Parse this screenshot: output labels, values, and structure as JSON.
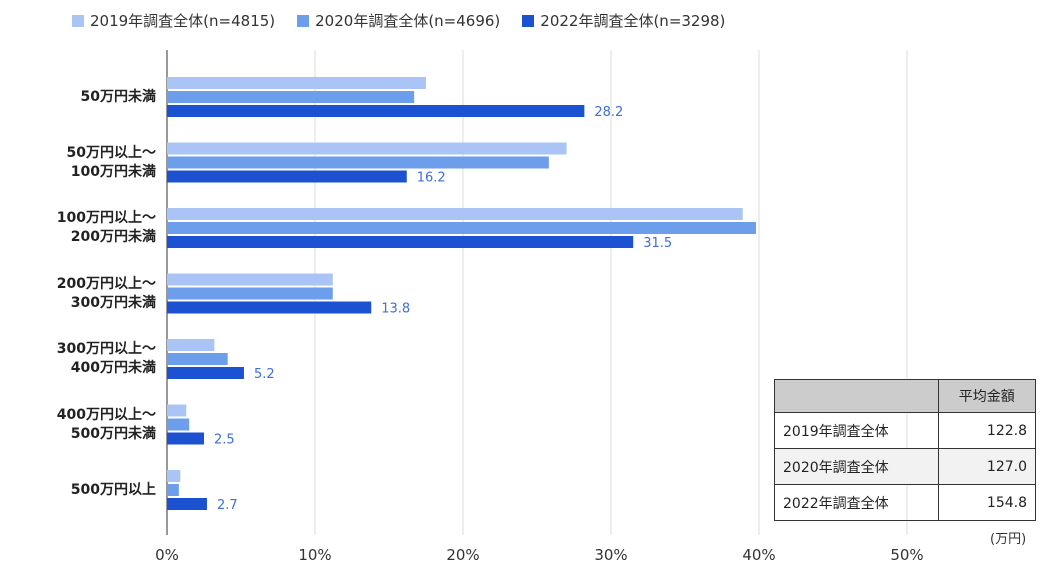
{
  "legend": [
    {
      "name": "2019年調査全体(n=4815)",
      "color": "#a9c4f5"
    },
    {
      "name": "2020年調査全体(n=4696)",
      "color": "#6d9eeb"
    },
    {
      "name": "2022年調査全体(n=3298)",
      "color": "#1c52d1"
    }
  ],
  "chart_data": {
    "type": "bar",
    "orientation": "horizontal",
    "categories": [
      [
        "50万円未満"
      ],
      [
        "50万円以上～",
        "100万円未満"
      ],
      [
        "100万円以上～",
        "200万円未満"
      ],
      [
        "200万円以上～",
        "300万円未満"
      ],
      [
        "300万円以上～",
        "400万円未満"
      ],
      [
        "400万円以上～",
        "500万円未満"
      ],
      [
        "500万円以上"
      ]
    ],
    "series": [
      {
        "name": "2019年調査全体(n=4815)",
        "color": "#a9c4f5",
        "values": [
          17.5,
          27.0,
          38.9,
          11.2,
          3.2,
          1.3,
          0.9
        ]
      },
      {
        "name": "2020年調査全体(n=4696)",
        "color": "#6d9eeb",
        "values": [
          16.7,
          25.8,
          39.8,
          11.2,
          4.1,
          1.5,
          0.8
        ]
      },
      {
        "name": "2022年調査全体(n=3298)",
        "color": "#1c52d1",
        "values": [
          28.2,
          16.2,
          31.5,
          13.8,
          5.2,
          2.5,
          2.7
        ],
        "labels": [
          "28.2",
          "16.2",
          "31.5",
          "13.8",
          "5.2",
          "2.5",
          "2.7"
        ]
      }
    ],
    "xlim": [
      0,
      50
    ],
    "xticks": [
      "0%",
      "10%",
      "20%",
      "30%",
      "40%",
      "50%"
    ],
    "xtick_values": [
      0,
      10,
      20,
      30,
      40,
      50
    ],
    "grid": true
  },
  "avg_table": {
    "header": "平均金額",
    "rows": [
      {
        "label": "2019年調査全体",
        "value": "122.8"
      },
      {
        "label": "2020年調査全体",
        "value": "127.0"
      },
      {
        "label": "2022年調査全体",
        "value": "154.8"
      }
    ],
    "unit": "(万円)"
  }
}
